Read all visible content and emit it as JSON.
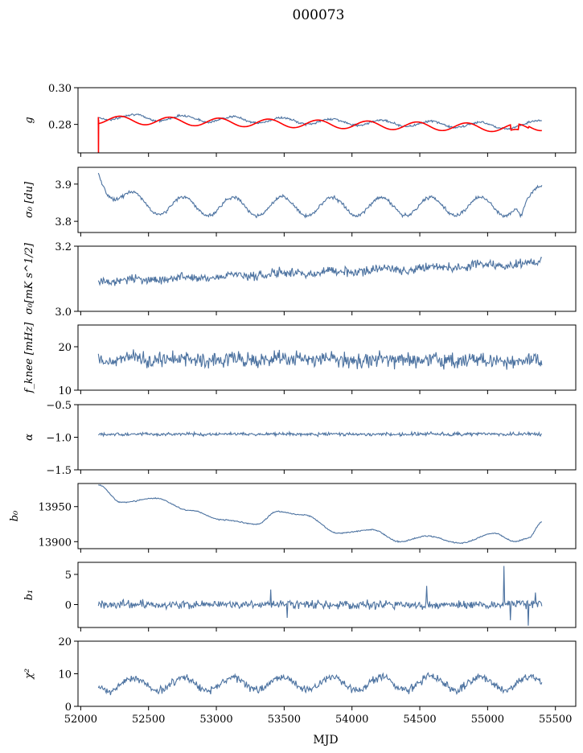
{
  "figure_title": "000073",
  "colors": {
    "series": "#4c72a0",
    "reference": "#ff0000",
    "axis": "#000000",
    "background": "#ffffff"
  },
  "chart_data": [
    {
      "id": "g",
      "type": "line",
      "ylabel": "g",
      "ylabel_mathml": "g",
      "xlim": [
        51980,
        55650
      ],
      "ylim": [
        0.2645,
        0.3
      ],
      "yticks": [
        0.28,
        0.3
      ],
      "ytick_labels": [
        "0.28",
        "0.30"
      ],
      "xticks": [
        52000,
        52500,
        53000,
        53500,
        54000,
        54500,
        55000,
        55500
      ],
      "xtick_labels": [],
      "x_range": [
        52130,
        55400
      ],
      "series": [
        {
          "kind": "noisy",
          "start": 0.2843,
          "end": 0.2788,
          "osc_amp": 0.0016,
          "osc_period": 365,
          "noise": 0.0005,
          "edge_rise": 0.003
        },
        {
          "kind": "smooth",
          "color": "reference",
          "start": 0.2825,
          "end": 0.2778,
          "osc_amp": 0.0022,
          "osc_period": 365,
          "spike_at": 52130,
          "spike_to": 0.2645
        }
      ]
    },
    {
      "id": "sigma0_du",
      "type": "line",
      "ylabel": "σ₀ [du]",
      "xlim": [
        51980,
        55650
      ],
      "ylim": [
        3.77,
        3.945
      ],
      "yticks": [
        3.8,
        3.9
      ],
      "ytick_labels": [
        "3.8",
        "3.9"
      ],
      "xticks": [
        52000,
        52500,
        53000,
        53500,
        54000,
        54500,
        55000,
        55500
      ],
      "xtick_labels": [],
      "x_range": [
        52130,
        55400
      ],
      "series": [
        {
          "kind": "noisy",
          "start": 3.935,
          "settle": 3.84,
          "end": 3.895,
          "osc_amp": 0.025,
          "osc_period": 365,
          "noise": 0.004,
          "dip_at": 55250
        }
      ]
    },
    {
      "id": "sigma0_mk",
      "type": "line",
      "ylabel": "σ₀[mK s^1/2]",
      "xlim": [
        51980,
        55650
      ],
      "ylim": [
        3.0,
        3.2
      ],
      "yticks": [
        3.0,
        3.2
      ],
      "ytick_labels": [
        "3.0",
        "3.2"
      ],
      "xticks": [
        52000,
        52500,
        53000,
        53500,
        54000,
        54500,
        55000,
        55500
      ],
      "xtick_labels": [],
      "x_range": [
        52130,
        55400
      ],
      "series": [
        {
          "kind": "noisy",
          "start": 3.092,
          "end": 3.148,
          "osc_amp": 0.004,
          "osc_period": 365,
          "noise": 0.012
        }
      ]
    },
    {
      "id": "fknee",
      "type": "line",
      "ylabel": "f_knee [mHz]",
      "xlim": [
        51980,
        55650
      ],
      "ylim": [
        10,
        25
      ],
      "yticks": [
        10,
        20
      ],
      "ytick_labels": [
        "10",
        "20"
      ],
      "xticks": [
        52000,
        52500,
        53000,
        53500,
        54000,
        54500,
        55000,
        55500
      ],
      "xtick_labels": [],
      "x_range": [
        52130,
        55400
      ],
      "series": [
        {
          "kind": "noisy",
          "start": 17.2,
          "end": 16.8,
          "osc_amp": 0.2,
          "osc_period": 365,
          "noise": 1.5
        }
      ]
    },
    {
      "id": "alpha",
      "type": "line",
      "ylabel": "α",
      "xlim": [
        51980,
        55650
      ],
      "ylim": [
        -1.5,
        -0.5
      ],
      "yticks": [
        -1.5,
        -1.0,
        -0.5
      ],
      "ytick_labels": [
        "−1.5",
        "−1.0",
        "−0.5"
      ],
      "xticks": [
        52000,
        52500,
        53000,
        53500,
        54000,
        54500,
        55000,
        55500
      ],
      "xtick_labels": [],
      "x_range": [
        52130,
        55400
      ],
      "series": [
        {
          "kind": "noisy",
          "start": -0.955,
          "end": -0.95,
          "osc_amp": 0.004,
          "osc_period": 365,
          "noise": 0.022
        }
      ]
    },
    {
      "id": "b0",
      "type": "line",
      "ylabel": "b₀",
      "xlim": [
        51980,
        55650
      ],
      "ylim": [
        13890,
        13983
      ],
      "yticks": [
        13900,
        13950
      ],
      "ytick_labels": [
        "13900",
        "13950"
      ],
      "xticks": [
        52000,
        52500,
        53000,
        53500,
        54000,
        54500,
        55000,
        55500
      ],
      "xtick_labels": [],
      "x_range": [
        52130,
        55400
      ],
      "series": [
        {
          "kind": "knots",
          "noise": 0.7,
          "knots_x": [
            52130,
            52300,
            52550,
            52800,
            53050,
            53300,
            53450,
            53650,
            53900,
            54150,
            54350,
            54550,
            54800,
            55050,
            55200,
            55300,
            55400
          ],
          "knots_y": [
            13981,
            13956,
            13962,
            13945,
            13931,
            13925,
            13943,
            13938,
            13912,
            13917,
            13900,
            13908,
            13898,
            13912,
            13900,
            13905,
            13928
          ]
        }
      ]
    },
    {
      "id": "b1",
      "type": "line",
      "ylabel": "b₁",
      "xlim": [
        51980,
        55650
      ],
      "ylim": [
        -3.8,
        7
      ],
      "yticks": [
        0,
        5
      ],
      "ytick_labels": [
        "0",
        "5"
      ],
      "xticks": [
        52000,
        52500,
        53000,
        53500,
        54000,
        54500,
        55000,
        55500
      ],
      "xtick_labels": [],
      "x_range": [
        52130,
        55400
      ],
      "series": [
        {
          "kind": "noisy",
          "start": 0.0,
          "end": 0.0,
          "osc_amp": 0.0,
          "osc_period": 365,
          "noise": 0.6,
          "spikes": [
            [
              53400,
              2.5
            ],
            [
              53520,
              -2.2
            ],
            [
              54550,
              3.1
            ],
            [
              55120,
              6.4
            ],
            [
              55170,
              -2.6
            ],
            [
              55300,
              -3.5
            ],
            [
              55350,
              2.0
            ]
          ]
        }
      ]
    },
    {
      "id": "chi2",
      "type": "line",
      "ylabel": "χ²",
      "xlabel": "MJD",
      "xlim": [
        51980,
        55650
      ],
      "ylim": [
        0,
        20
      ],
      "yticks": [
        0,
        10,
        20
      ],
      "ytick_labels": [
        "0",
        "10",
        "20"
      ],
      "xticks": [
        52000,
        52500,
        53000,
        53500,
        54000,
        54500,
        55000,
        55500
      ],
      "xtick_labels": [
        "52000",
        "52500",
        "53000",
        "53500",
        "54000",
        "54500",
        "55000",
        "55500"
      ],
      "x_range": [
        52130,
        55400
      ],
      "series": [
        {
          "kind": "noisy",
          "start": 6.8,
          "end": 7.2,
          "osc_amp": 2.0,
          "osc_period": 365,
          "noise": 1.0
        }
      ]
    }
  ]
}
